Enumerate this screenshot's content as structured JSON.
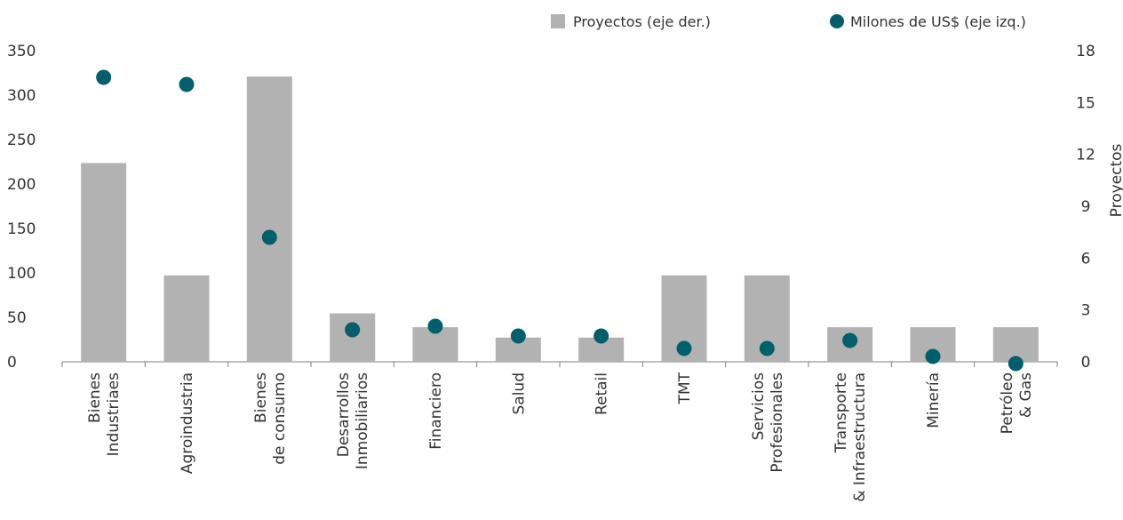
{
  "chart_data": {
    "type": "bar",
    "title": "",
    "categories": [
      [
        "Bienes",
        "Industriaes"
      ],
      [
        "Agroindustria"
      ],
      [
        "Bienes",
        "de consumo"
      ],
      [
        "Desarrollos",
        "Inmobiliarios"
      ],
      [
        "Financiero"
      ],
      [
        "Salud"
      ],
      [
        "Retail"
      ],
      [
        "TMT"
      ],
      [
        "Servicios",
        "Profesionales"
      ],
      [
        "Transporte",
        "& Infraestructura"
      ],
      [
        "Minería"
      ],
      [
        "Petróleo",
        "& Gas"
      ]
    ],
    "series": [
      {
        "name": "Proyectos (eje der.)",
        "type": "bar",
        "axis": "right",
        "color": "#b2b2b2",
        "values": [
          11.5,
          5,
          16.5,
          2.8,
          2,
          1.4,
          1.4,
          5,
          5,
          2,
          2,
          2
        ]
      },
      {
        "name": "Milones de US$ (eje izq.)",
        "type": "scatter",
        "axis": "left",
        "color": "#005f6b",
        "values": [
          320,
          312,
          140,
          36,
          40,
          29,
          29,
          15,
          15,
          24,
          6,
          -2
        ]
      }
    ],
    "y_left": {
      "min": 0,
      "max": 350,
      "ticks": [
        0,
        50,
        100,
        150,
        200,
        250,
        300,
        350
      ]
    },
    "y_right": {
      "min": 0,
      "max": 18,
      "ticks": [
        0,
        3,
        6,
        9,
        12,
        15,
        18
      ],
      "label": "Proyectos"
    },
    "legend": {
      "position": "top-right"
    },
    "grid": false
  }
}
